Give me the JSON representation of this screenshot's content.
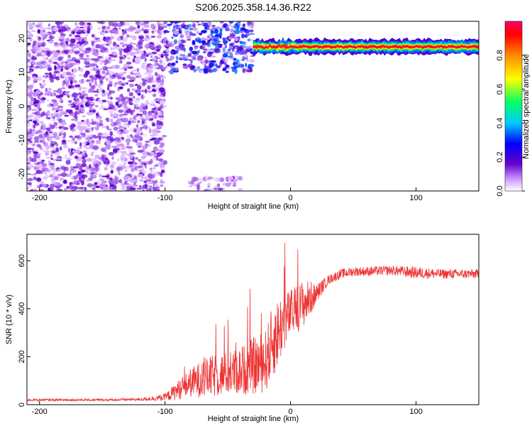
{
  "title": "S206.2025.358.14.36.R22",
  "colors": {
    "snr_line": "#ee3333",
    "axis": "#000000"
  },
  "chart_data": [
    {
      "type": "heatmap",
      "name": "spectrogram",
      "xlabel": "Height of straight line (km)",
      "ylabel": "Frequency (Hz)",
      "xlim": [
        -210,
        150
      ],
      "ylim": [
        -25,
        25
      ],
      "xticks": [
        -200,
        -100,
        0,
        100
      ],
      "yticks": [
        -20,
        -10,
        0,
        10,
        20
      ],
      "x_tick_labels": [
        "-200",
        "-100",
        "0",
        "100"
      ],
      "y_tick_labels": [
        "-20",
        "-10",
        "0",
        "10",
        "20"
      ],
      "colorbar": {
        "label": "Normalized spectral amplitude",
        "range": [
          0,
          1
        ],
        "ticks": [
          0.0,
          0.2,
          0.4,
          0.6,
          0.8
        ],
        "tick_labels": [
          "0.0",
          "0.2",
          "0.4",
          "0.6",
          "0.8"
        ],
        "colors": [
          "#ffffff",
          "#cc99ff",
          "#6600cc",
          "#0000ff",
          "#00ccff",
          "#00ff66",
          "#ffff00",
          "#ff8800",
          "#ff0000",
          "#ff0066"
        ]
      },
      "features": [
        {
          "kind": "noise",
          "x_range": [
            -210,
            -100
          ],
          "f_range": [
            -25,
            25
          ],
          "amplitude": 0.18
        },
        {
          "kind": "noise",
          "x_range": [
            -100,
            -30
          ],
          "f_range": [
            10,
            25
          ],
          "amplitude": 0.3
        },
        {
          "kind": "noise",
          "x_range": [
            -80,
            -40
          ],
          "f_range": [
            -25,
            -21
          ],
          "amplitude": 0.15
        },
        {
          "kind": "carrier",
          "x_range": [
            -30,
            150
          ],
          "frequency": 17.5,
          "amplitude": 0.95
        }
      ]
    },
    {
      "type": "line",
      "name": "snr",
      "xlabel": "Height of straight line (km)",
      "ylabel": "SNR (10 * v/v)",
      "xlim": [
        -210,
        150
      ],
      "ylim": [
        0,
        710
      ],
      "xticks": [
        -200,
        -100,
        0,
        100
      ],
      "yticks": [
        0,
        200,
        400,
        600
      ],
      "x_tick_labels": [
        "-200",
        "-100",
        "0",
        "100"
      ],
      "y_tick_labels": [
        "0",
        "200",
        "400",
        "600"
      ],
      "series": [
        {
          "name": "SNR",
          "x": [
            -210,
            -180,
            -150,
            -120,
            -100,
            -90,
            -80,
            -70,
            -60,
            -50,
            -40,
            -30,
            -20,
            -15,
            -10,
            -5,
            0,
            5,
            10,
            15,
            20,
            25,
            30,
            40,
            50,
            60,
            80,
            100,
            120,
            150
          ],
          "values": [
            20,
            20,
            20,
            22,
            30,
            60,
            90,
            110,
            120,
            130,
            140,
            160,
            180,
            250,
            300,
            350,
            380,
            400,
            420,
            440,
            460,
            490,
            520,
            545,
            555,
            555,
            560,
            550,
            545,
            545
          ],
          "noise": [
            5,
            5,
            5,
            6,
            15,
            40,
            60,
            80,
            90,
            90,
            100,
            120,
            130,
            150,
            150,
            120,
            100,
            100,
            100,
            80,
            40,
            30,
            20,
            20,
            20,
            20,
            20,
            25,
            20,
            20
          ]
        }
      ]
    }
  ]
}
